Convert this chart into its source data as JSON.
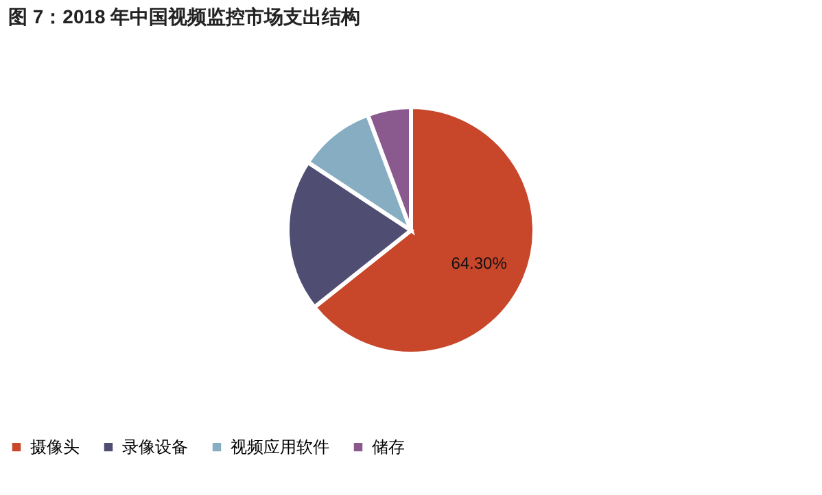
{
  "chart_data": {
    "type": "pie",
    "title": "图 7：2018 年中国视频监控市场支出结构",
    "categories": [
      "摄像头",
      "录像设备",
      "视频应用软件",
      "储存"
    ],
    "values": [
      64.3,
      20,
      10,
      5.7
    ],
    "colors": [
      "#c8462a",
      "#4f4e72",
      "#86adc2",
      "#8a5a8e"
    ],
    "value_labels": [
      "64.30%",
      null,
      null,
      null
    ],
    "legend": "bottom"
  }
}
